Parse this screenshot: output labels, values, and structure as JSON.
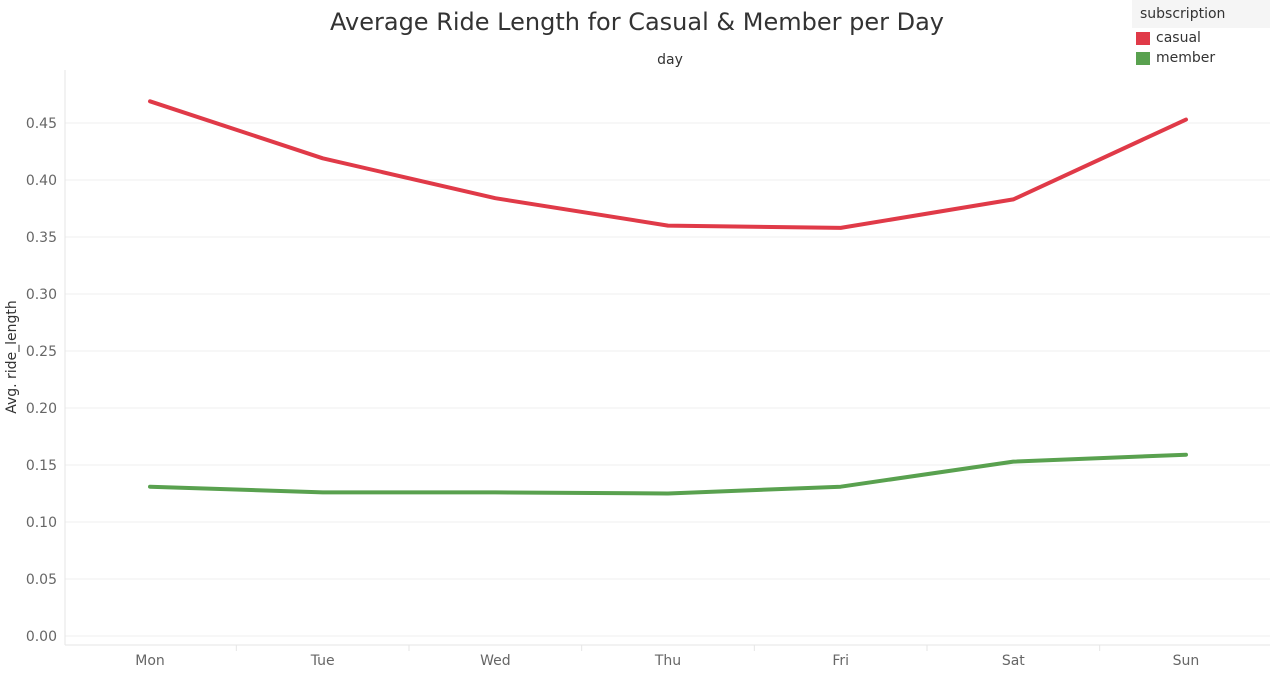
{
  "chart_data": {
    "type": "line",
    "title": "Average Ride Length for Casual & Member per Day",
    "x_header": "day",
    "ylabel": "Avg. ride_length",
    "categories": [
      "Mon",
      "Tue",
      "Wed",
      "Thu",
      "Fri",
      "Sat",
      "Sun"
    ],
    "ylim": [
      0,
      0.5
    ],
    "yticks": [
      "0.00",
      "0.05",
      "0.10",
      "0.15",
      "0.20",
      "0.25",
      "0.30",
      "0.35",
      "0.40",
      "0.45"
    ],
    "grid": true,
    "legend_placement": "top-right",
    "legend_title": "subscription",
    "series": [
      {
        "name": "casual",
        "color": "#e03a48",
        "values": [
          0.469,
          0.419,
          0.384,
          0.36,
          0.358,
          0.383,
          0.453
        ]
      },
      {
        "name": "member",
        "color": "#59a14f",
        "values": [
          0.131,
          0.126,
          0.126,
          0.125,
          0.131,
          0.153,
          0.159
        ]
      }
    ]
  }
}
